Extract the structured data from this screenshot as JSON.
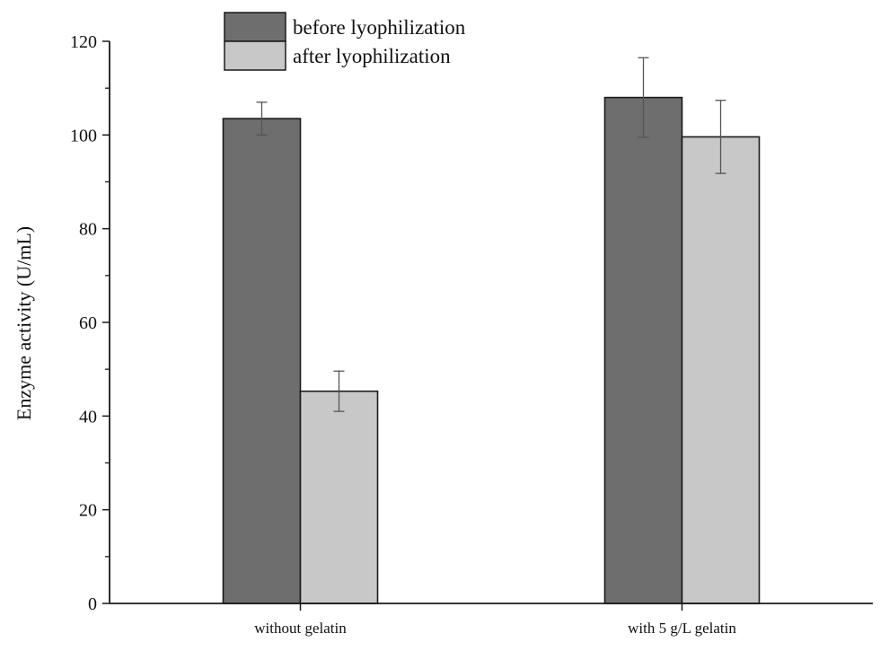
{
  "chart_data": {
    "type": "bar",
    "categories": [
      "without gelatin",
      "with 5 g/L gelatin"
    ],
    "series": [
      {
        "name": "before lyophilization",
        "values": [
          103.5,
          108
        ],
        "errors": [
          3.5,
          8.5
        ],
        "color": "#6e6e6e"
      },
      {
        "name": "after lyophilization",
        "values": [
          45.3,
          99.6
        ],
        "errors": [
          4.3,
          7.8
        ],
        "color": "#c8c8c8"
      }
    ],
    "title": "",
    "xlabel": "",
    "ylabel": "Enzyme activity (U/mL)",
    "ylim": [
      0,
      120
    ],
    "yticks": [
      0,
      20,
      40,
      60,
      80,
      100,
      120
    ],
    "grid": false,
    "legend_position": "top-left"
  }
}
